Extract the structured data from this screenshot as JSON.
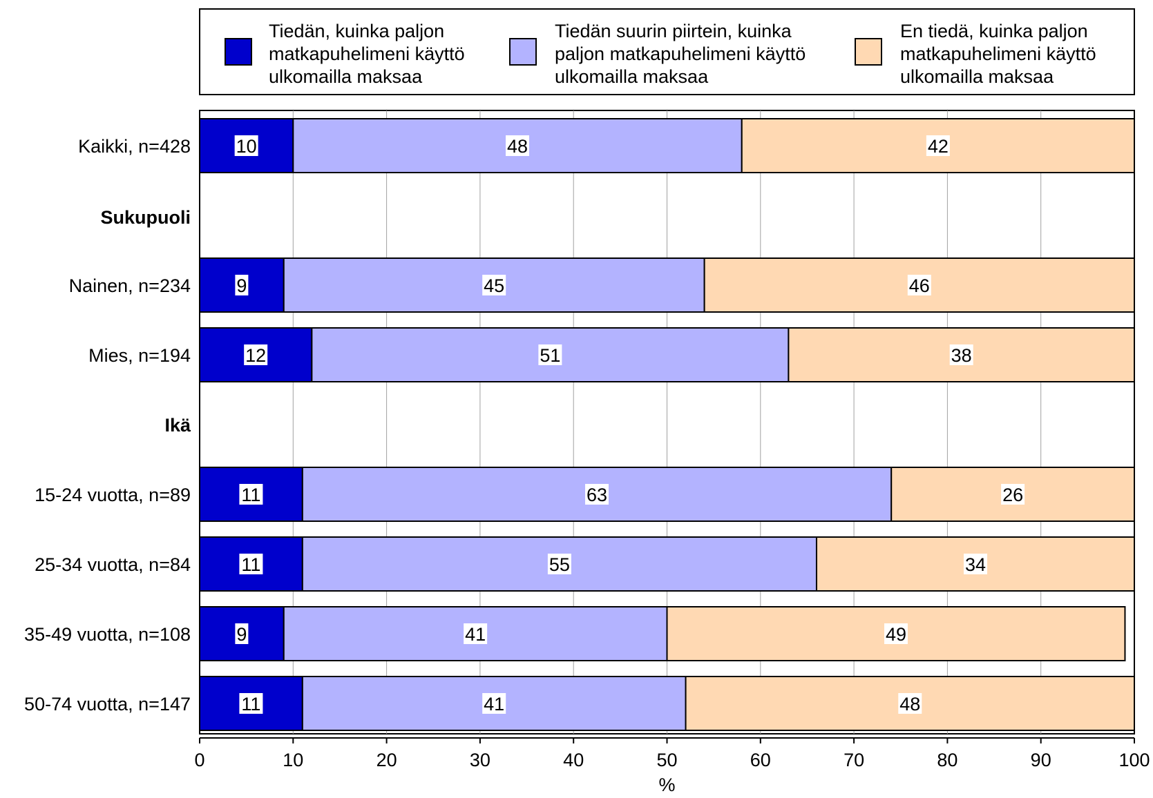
{
  "chart_data": {
    "type": "bar",
    "orientation": "horizontal",
    "stacked": true,
    "title": "",
    "xlabel": "%",
    "ylabel": "",
    "xlim": [
      0,
      100
    ],
    "x_ticks": [
      "0",
      "10",
      "20",
      "30",
      "40",
      "50",
      "60",
      "70",
      "80",
      "90",
      "100"
    ],
    "grid": "vertical",
    "legend_position": "top",
    "rows": [
      {
        "label": "Kaikki, n=428",
        "is_header": false,
        "values": [
          10,
          48,
          42
        ]
      },
      {
        "label": "Sukupuoli",
        "is_header": true,
        "values": null
      },
      {
        "label": "Nainen, n=234",
        "is_header": false,
        "values": [
          9,
          45,
          46
        ]
      },
      {
        "label": "Mies, n=194",
        "is_header": false,
        "values": [
          12,
          51,
          38
        ]
      },
      {
        "label": "Ikä",
        "is_header": true,
        "values": null
      },
      {
        "label": "15-24 vuotta, n=89",
        "is_header": false,
        "values": [
          11,
          63,
          26
        ]
      },
      {
        "label": "25-34 vuotta, n=84",
        "is_header": false,
        "values": [
          11,
          55,
          34
        ]
      },
      {
        "label": "35-49 vuotta, n=108",
        "is_header": false,
        "values": [
          9,
          41,
          49
        ]
      },
      {
        "label": "50-74 vuotta, n=147",
        "is_header": false,
        "values": [
          11,
          41,
          48
        ]
      }
    ],
    "series": [
      {
        "name": "Tiedän, kuinka paljon matkapuhelimeni käyttö ulkomailla maksaa",
        "lines": [
          "Tiedän, kuinka paljon",
          "matkapuhelimeni käyttö",
          "ulkomailla maksaa"
        ],
        "color": "#0000cc"
      },
      {
        "name": "Tiedän suurin piirtein, kuinka paljon matkapuhelimeni käyttö ulkomailla maksaa",
        "lines": [
          "Tiedän suurin piirtein, kuinka",
          "paljon matkapuhelimeni käyttö",
          "ulkomailla maksaa"
        ],
        "color": "#b3b3ff"
      },
      {
        "name": "En tiedä, kuinka paljon matkapuhelimeni käyttö ulkomailla maksaa",
        "lines": [
          "En tiedä, kuinka paljon",
          "matkapuhelimeni käyttö",
          "ulkomailla maksaa"
        ],
        "color": "#ffd9b3"
      }
    ]
  }
}
